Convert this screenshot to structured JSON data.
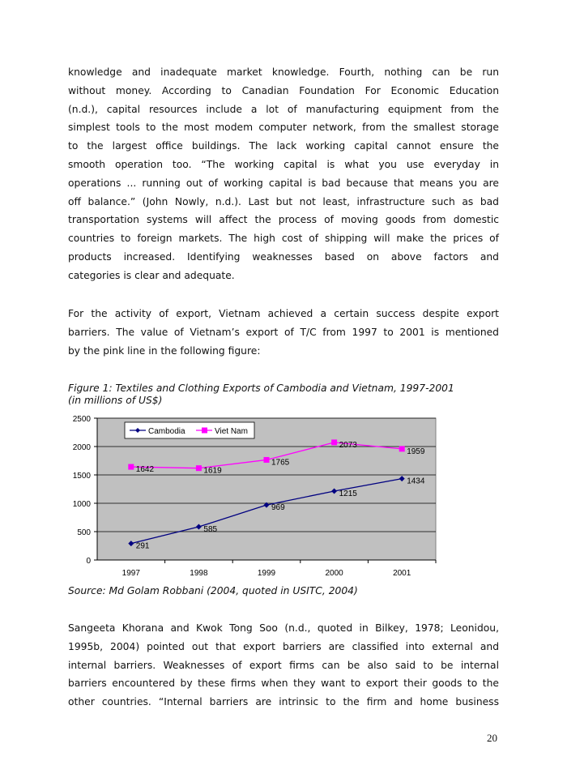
{
  "paragraphs": [
    {
      "lines": [
        "knowledge and inadequate market knowledge. Fourth, nothing can be run",
        "without money. According to Canadian Foundation For Economic Education",
        "(n.d.), capital resources include a lot of manufacturing equipment from the",
        "simplest tools to the most modem computer network, from the smallest storage",
        "to the largest office buildings. The lack working capital cannot ensure the",
        "smooth operation too. “The working capital is what you use everyday in",
        "operations ... running out of working capital is bad because that means you are",
        "off balance.” (John Nowly, n.d.). Last but not least, infrastructure such as bad",
        "transportation systems will affect the process of moving goods from domestic",
        "countries to foreign markets. The high cost of shipping will make the prices of",
        "products increased. Identifying weaknesses based on above factors and",
        "categories is clear and adequate."
      ]
    },
    {
      "lines": [
        "For the activity of export, Vietnam achieved a certain success despite export",
        "barriers. The value of Vietnam’s export of T/C from 1997 to 2001 is mentioned",
        "by the pink line in the following figure:"
      ]
    },
    {
      "lines": [
        "Sangeeta Khorana and Kwok Tong Soo (n.d., quoted in Bilkey, 1978; Leonidou,",
        "1995b, 2004) pointed out that export barriers are classified into external and",
        "internal barriers. Weaknesses of export firms can be also said to be internal",
        "barriers encountered by these firms when they want to export their goods to the",
        "other countries. “Internal barriers are intrinsic to the firm and home business"
      ]
    }
  ],
  "figure": {
    "caption_line1": "Figure 1: Textiles and Clothing Exports of Cambodia and Vietnam, 1997-2001",
    "caption_line2": "(in millions of US$)",
    "source": "Source: Md Golam Robbani (2004, quoted in USITC, 2004)"
  },
  "chart_data": {
    "type": "line",
    "categories": [
      "1997",
      "1998",
      "1999",
      "2000",
      "2001"
    ],
    "ylim": [
      0,
      2500
    ],
    "yticks": [
      "0",
      "500",
      "1000",
      "1500",
      "2000",
      "2500"
    ],
    "grid": true,
    "legend": "top-left",
    "background": "#c0c0c0",
    "series": [
      {
        "name": "Cambodia",
        "color": "#000080",
        "marker": "diamond",
        "values": [
          291,
          585,
          969,
          1215,
          1434
        ]
      },
      {
        "name": "Viet Nam",
        "color": "#ff00ff",
        "marker": "square",
        "values": [
          1642,
          1619,
          1765,
          2073,
          1959
        ]
      }
    ]
  },
  "page_number": "20"
}
